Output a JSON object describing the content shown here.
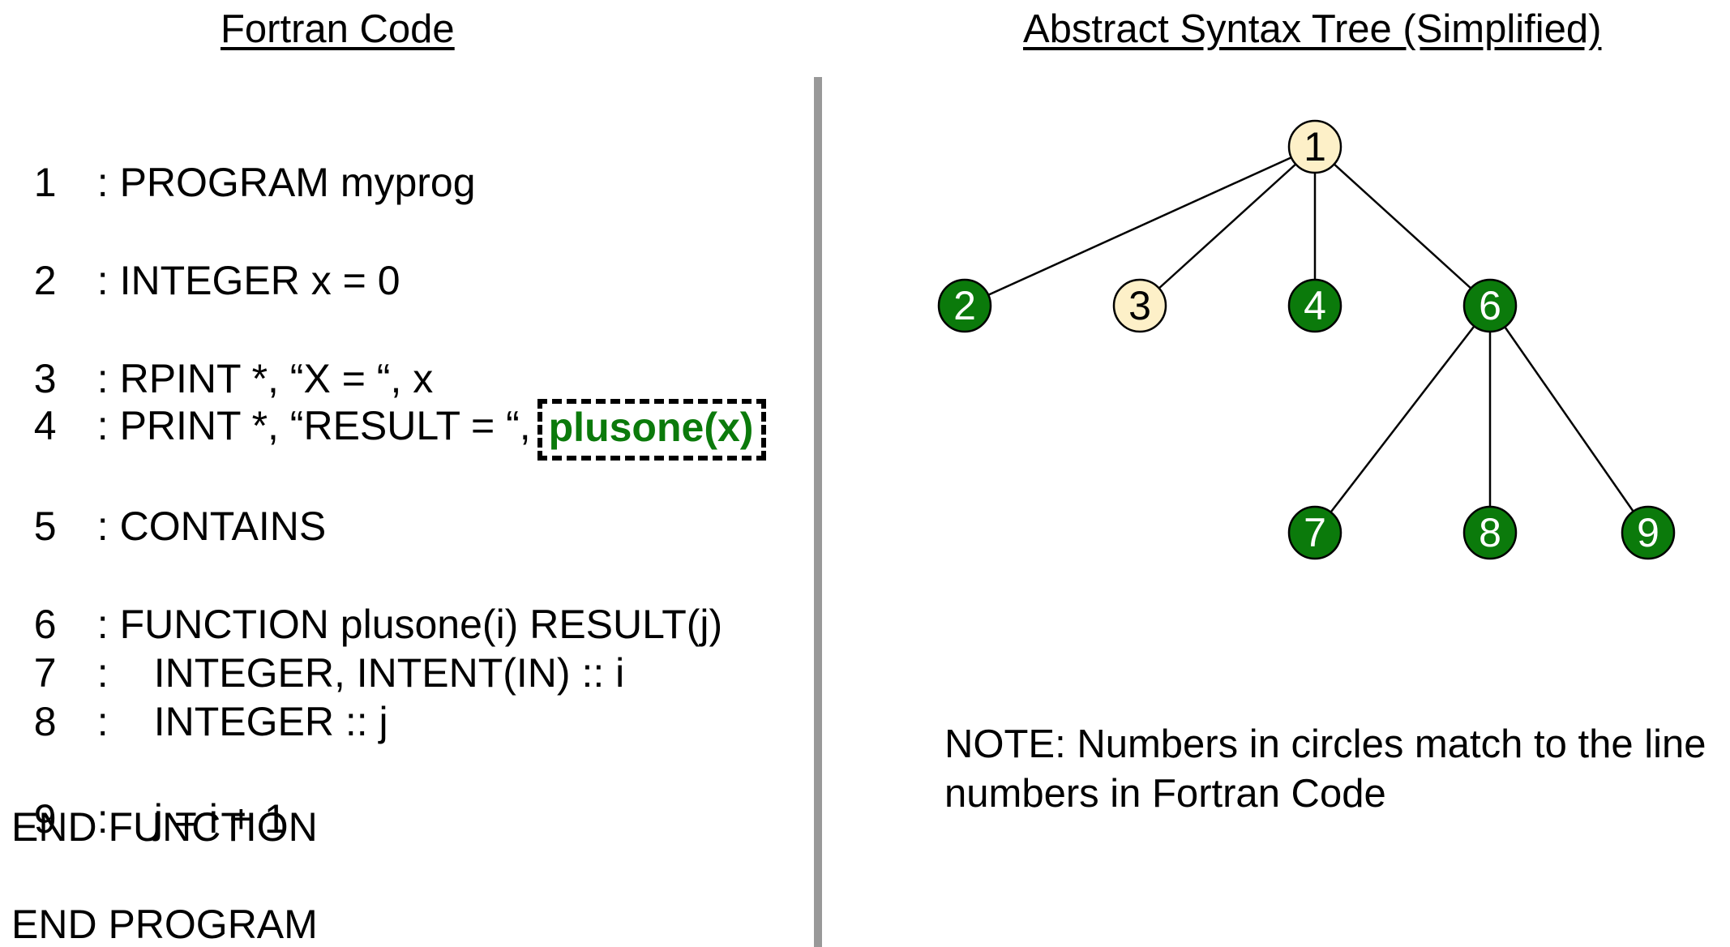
{
  "left_title": "Fortran Code",
  "right_title": "Abstract Syntax Tree (Simplified)",
  "code": {
    "line1": {
      "num": "1",
      "text": ": PROGRAM myprog"
    },
    "line2": {
      "num": "2",
      "text": ": INTEGER x = 0"
    },
    "line3": {
      "num": "3",
      "text": ": RPINT *, “X = “, x"
    },
    "line4": {
      "num": "4",
      "text": ": PRINT *, “RESULT = “,",
      "highlight": "plusone(x)"
    },
    "line5": {
      "num": "5",
      "text": ": CONTAINS"
    },
    "line6": {
      "num": "6",
      "text": ": FUNCTION plusone(i) RESULT(j)"
    },
    "line7": {
      "num": "7",
      "text": ":",
      "body": "INTEGER, INTENT(IN) :: i"
    },
    "line8": {
      "num": "8",
      "text": ":",
      "body": "INTEGER :: j"
    },
    "line9": {
      "num": "9",
      "text": ":",
      "body": "j = i + 1"
    },
    "end_function": "END FUNCTION",
    "end_program": "END PROGRAM"
  },
  "tree": {
    "colors": {
      "highlight_fill": "#0b7a0b",
      "plain_fill": "#fdf0c8",
      "stroke": "#000000",
      "highlight_text": "#ffffff",
      "plain_text": "#000000"
    },
    "nodes": [
      {
        "id": "1",
        "label": "1",
        "style": "plain"
      },
      {
        "id": "2",
        "label": "2",
        "style": "highlight"
      },
      {
        "id": "3",
        "label": "3",
        "style": "plain"
      },
      {
        "id": "4",
        "label": "4",
        "style": "highlight"
      },
      {
        "id": "6",
        "label": "6",
        "style": "highlight"
      },
      {
        "id": "7",
        "label": "7",
        "style": "highlight"
      },
      {
        "id": "8",
        "label": "8",
        "style": "highlight"
      },
      {
        "id": "9",
        "label": "9",
        "style": "highlight"
      }
    ],
    "edges": [
      [
        "1",
        "2"
      ],
      [
        "1",
        "3"
      ],
      [
        "1",
        "4"
      ],
      [
        "1",
        "6"
      ],
      [
        "6",
        "7"
      ],
      [
        "6",
        "8"
      ],
      [
        "6",
        "9"
      ]
    ]
  },
  "note": {
    "line1": "NOTE: Numbers in circles match to the line",
    "line2": "numbers in Fortran Code"
  }
}
